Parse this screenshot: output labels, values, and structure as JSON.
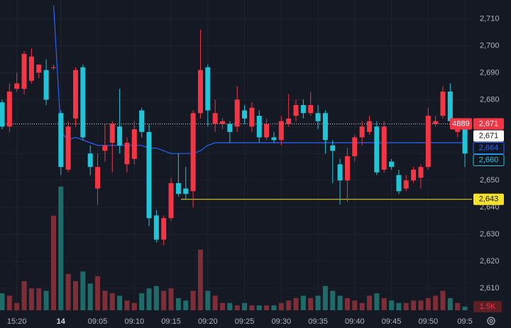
{
  "chart_data": {
    "type": "candlestick",
    "ylim": [
      2601,
      2717
    ],
    "yticks": [
      {
        "value": 2610,
        "label": "2,610"
      },
      {
        "value": 2620,
        "label": "2,620"
      },
      {
        "value": 2630,
        "label": "2,630"
      },
      {
        "value": 2640,
        "label": "2,640"
      },
      {
        "value": 2650,
        "label": "2,650"
      },
      {
        "value": 2660,
        "label": "2,660"
      },
      {
        "value": 2670,
        "label": "2,670"
      },
      {
        "value": 2680,
        "label": "2,680"
      },
      {
        "value": 2690,
        "label": "2,690"
      },
      {
        "value": 2700,
        "label": "2,700"
      },
      {
        "value": 2710,
        "label": "2,710"
      }
    ],
    "xticks": [
      {
        "value": 2,
        "label": "15:20"
      },
      {
        "value": 8,
        "label": "14"
      },
      {
        "value": 13,
        "label": "09:05"
      },
      {
        "value": 18,
        "label": "09:10"
      },
      {
        "value": 23,
        "label": "09:15"
      },
      {
        "value": 28,
        "label": "09:20"
      },
      {
        "value": 33,
        "label": "09:25"
      },
      {
        "value": 38,
        "label": "09:30"
      },
      {
        "value": 43,
        "label": "09:35"
      },
      {
        "value": 48,
        "label": "09:40"
      },
      {
        "value": 53,
        "label": "09:45"
      },
      {
        "value": 58,
        "label": "09:50"
      },
      {
        "value": 63,
        "label": "09:5"
      }
    ],
    "grid": true,
    "up_color": "#f23645",
    "down_color": "#22c5d8",
    "open": [
      2679,
      2670,
      2684,
      2684,
      2687,
      2690,
      2691,
      2692,
      2675,
      2654,
      2673,
      2692,
      2660,
      2647,
      2661,
      2664,
      2670,
      2656,
      2658,
      2676,
      2668,
      2637,
      2628,
      2636,
      2649,
      2647,
      2646,
      2675,
      2692,
      2671,
      2671,
      2671,
      2670,
      2676,
      2670,
      2674,
      2666,
      2666,
      2665,
      2671,
      2674,
      2678,
      2675,
      2675,
      2675,
      2663,
      2656,
      2650,
      2659,
      2666,
      2668,
      2670,
      2654,
      2657,
      2652,
      2647,
      2650,
      2651,
      2655,
      2671,
      2674,
      2683,
      2668,
      2670
    ],
    "high": [
      2680,
      2686,
      2690,
      2698,
      2699,
      2693,
      2695,
      2693,
      2676,
      2672,
      2692,
      2693,
      2663,
      2660,
      2671,
      2672,
      2684,
      2666,
      2672,
      2677,
      2671,
      2639,
      2637,
      2651,
      2660,
      2655,
      2676,
      2706,
      2693,
      2680,
      2673,
      2672,
      2685,
      2678,
      2679,
      2676,
      2673,
      2668,
      2674,
      2682,
      2680,
      2680,
      2683,
      2678,
      2676,
      2665,
      2658,
      2662,
      2667,
      2672,
      2674,
      2672,
      2672,
      2658,
      2654,
      2652,
      2655,
      2656,
      2677,
      2674,
      2685,
      2686,
      2672,
      2672
    ],
    "low": [
      2669,
      2668,
      2683,
      2682,
      2686,
      2688,
      2678,
      2691,
      2652,
      2653,
      2670,
      2665,
      2652,
      2641,
      2657,
      2653,
      2660,
      2653,
      2656,
      2666,
      2633,
      2627,
      2626,
      2635,
      2644,
      2643,
      2640,
      2673,
      2670,
      2668,
      2669,
      2664,
      2668,
      2671,
      2668,
      2664,
      2665,
      2664,
      2663,
      2670,
      2672,
      2673,
      2674,
      2669,
      2660,
      2649,
      2641,
      2642,
      2657,
      2663,
      2667,
      2652,
      2653,
      2654,
      2645,
      2646,
      2649,
      2647,
      2654,
      2670,
      2673,
      2670,
      2666,
      2655
    ],
    "close": [
      2670,
      2683,
      2686,
      2697,
      2696,
      2693,
      2680,
      2692,
      2655,
      2670,
      2691,
      2666,
      2655,
      2655,
      2663,
      2671,
      2663,
      2664,
      2669,
      2668,
      2636,
      2628,
      2636,
      2649,
      2645,
      2645,
      2675,
      2691,
      2676,
      2675,
      2672,
      2668,
      2680,
      2673,
      2677,
      2666,
      2671,
      2665,
      2672,
      2673,
      2678,
      2675,
      2678,
      2672,
      2665,
      2661,
      2650,
      2659,
      2666,
      2670,
      2672,
      2653,
      2670,
      2655,
      2646,
      2650,
      2654,
      2655,
      2674,
      2672,
      2683,
      2672,
      2671,
      2660
    ],
    "moving_average": {
      "color": "#2962ff",
      "values": [
        null,
        null,
        null,
        null,
        null,
        null,
        null,
        2715,
        2668,
        2665,
        2666,
        2665,
        2664,
        2663,
        2663,
        2663,
        2663,
        2663,
        2663,
        2663,
        2662,
        2662,
        2661,
        2660,
        2660,
        2660,
        2660,
        2661,
        2663,
        2664,
        2664,
        2664,
        2664,
        2664,
        2664,
        2664,
        2664,
        2664,
        2664,
        2664,
        2664,
        2664,
        2664,
        2664,
        2664,
        2664,
        2664,
        2664,
        2664,
        2664,
        2664,
        2664,
        2664,
        2664,
        2664,
        2664,
        2664,
        2664,
        2664,
        2664,
        2664,
        2664,
        2664,
        2664
      ]
    },
    "volume": {
      "ylim": [
        0,
        60
      ],
      "up_color": "#7d2e37",
      "down_color": "#1f6b69",
      "values": [
        7,
        6,
        3,
        12,
        9,
        9,
        8,
        39,
        51,
        15,
        12,
        16,
        11,
        14,
        8,
        7,
        6,
        4,
        3,
        7,
        9,
        10,
        8,
        9,
        5,
        4,
        8,
        25,
        8,
        6,
        3,
        3,
        2,
        3,
        2,
        2,
        2,
        2,
        3,
        4,
        5,
        6,
        5,
        6,
        10,
        8,
        6,
        5,
        4,
        3,
        6,
        7,
        5,
        4,
        3,
        3,
        4,
        4,
        5,
        6,
        8,
        5,
        3,
        1.5
      ],
      "last_label": "1.5K"
    },
    "price_labels": [
      {
        "value": 2671,
        "label": "2,671",
        "color": "#f23645",
        "text_color": "#ffffff"
      },
      {
        "value": 2671,
        "label": "2,671",
        "color": "#ffffff",
        "text_color": "#131722"
      },
      {
        "value": 2664,
        "label": "2,664",
        "color": "#131722",
        "text_color": "#2962ff"
      },
      {
        "value": 2660,
        "label": "2,660",
        "color": "#131722",
        "text_color": "#22c5d8"
      },
      {
        "value": 2643,
        "label": "2,643",
        "color": "#f5e12a",
        "text_color": "#131722"
      }
    ],
    "countdown": "4889",
    "level_line": {
      "value": 2643,
      "color": "#f5e12a"
    },
    "price_line": {
      "value": 2671,
      "color": "#d8d8d8"
    }
  }
}
